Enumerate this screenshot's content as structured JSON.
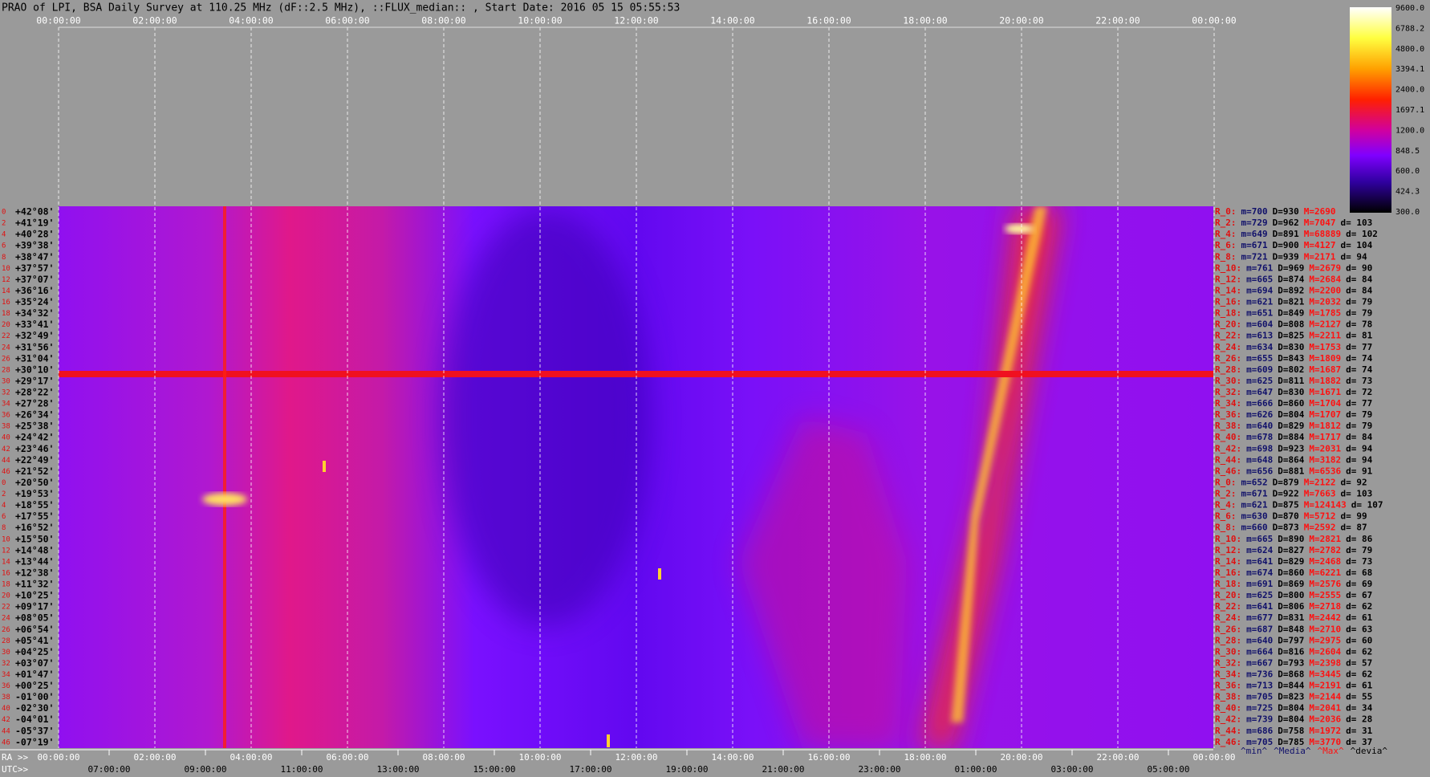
{
  "header": {
    "title": "PRAO of LPI, BSA Daily Survey at 110.25 MHz (dF::2.5 MHz), ::FLUX_median:: , Start Date: 2016 05 15 05:55:53"
  },
  "top_axis": {
    "labels": [
      "00:00:00",
      "02:00:00",
      "04:00:00",
      "06:00:00",
      "08:00:00",
      "10:00:00",
      "12:00:00",
      "14:00:00",
      "16:00:00",
      "18:00:00",
      "20:00:00",
      "22:00:00",
      "00:00:00"
    ]
  },
  "colorbar": {
    "ticks": [
      "9600.0",
      "6788.2",
      "4800.0",
      "3394.1",
      "2400.0",
      "1697.1",
      "1200.0",
      "848.5",
      "600.0",
      "424.3",
      "300.0"
    ]
  },
  "rows": {
    "index": [
      "0",
      "2",
      "4",
      "6",
      "8",
      "10",
      "12",
      "14",
      "16",
      "18",
      "20",
      "22",
      "24",
      "26",
      "28",
      "30",
      "32",
      "34",
      "36",
      "38",
      "40",
      "42",
      "44",
      "46",
      "0",
      "2",
      "4",
      "6",
      "8",
      "10",
      "12",
      "14",
      "16",
      "18",
      "20",
      "22",
      "24",
      "26",
      "28",
      "30",
      "32",
      "34",
      "36",
      "38",
      "40",
      "42",
      "44",
      "46"
    ],
    "declination": [
      "+42°08'",
      "+41°19'",
      "+40°28'",
      "+39°38'",
      "+38°47'",
      "+37°57'",
      "+37°07'",
      "+36°16'",
      "+35°24'",
      "+34°32'",
      "+33°41'",
      "+32°49'",
      "+31°56'",
      "+31°04'",
      "+30°10'",
      "+29°17'",
      "+28°22'",
      "+27°28'",
      "+26°34'",
      "+25°38'",
      "+24°42'",
      "+23°46'",
      "+22°49'",
      "+21°52'",
      "+20°50'",
      "+19°53'",
      "+18°55'",
      "+17°55'",
      "+16°52'",
      "+15°50'",
      "+14°48'",
      "+13°44'",
      "+12°38'",
      "+11°32'",
      "+10°25'",
      "+09°17'",
      "+08°05'",
      "+06°54'",
      "+05°41'",
      "+04°25'",
      "+03°07'",
      "+01°47'",
      "+00°25'",
      "-01°00'",
      "-02°30'",
      "-04°01'",
      "-05°37'",
      "-07°19'"
    ]
  },
  "stats": [
    {
      "label": "R_0:",
      "m": "m=700",
      "D": "D=930",
      "M": "M=2690"
    },
    {
      "label": "R_2:",
      "m": "m=729",
      "D": "D=962",
      "M": "M=7047",
      "d": "d= 103"
    },
    {
      "label": "R_4:",
      "m": "m=649",
      "D": "D=891",
      "M": "M=68889",
      "d": "d= 102"
    },
    {
      "label": "R_6:",
      "m": "m=671",
      "D": "D=900",
      "M": "M=4127",
      "d": "d= 104"
    },
    {
      "label": "R_8:",
      "m": "m=721",
      "D": "D=939",
      "M": "M=2171",
      "d": "d= 94"
    },
    {
      "label": "R_10:",
      "m": "m=761",
      "D": "D=969",
      "M": "M=2679",
      "d": "d= 90"
    },
    {
      "label": "R_12:",
      "m": "m=665",
      "D": "D=874",
      "M": "M=2684",
      "d": "d= 84"
    },
    {
      "label": "R_14:",
      "m": "m=694",
      "D": "D=892",
      "M": "M=2200",
      "d": "d= 84"
    },
    {
      "label": "R_16:",
      "m": "m=621",
      "D": "D=821",
      "M": "M=2032",
      "d": "d= 79"
    },
    {
      "label": "R_18:",
      "m": "m=651",
      "D": "D=849",
      "M": "M=1785",
      "d": "d= 79"
    },
    {
      "label": "R_20:",
      "m": "m=604",
      "D": "D=808",
      "M": "M=2127",
      "d": "d= 78"
    },
    {
      "label": "R_22:",
      "m": "m=613",
      "D": "D=825",
      "M": "M=2211",
      "d": "d= 81"
    },
    {
      "label": "R_24:",
      "m": "m=634",
      "D": "D=830",
      "M": "M=1753",
      "d": "d= 77"
    },
    {
      "label": "R_26:",
      "m": "m=655",
      "D": "D=843",
      "M": "M=1809",
      "d": "d= 74"
    },
    {
      "label": "R_28:",
      "m": "m=609",
      "D": "D=802",
      "M": "M=1687",
      "d": "d= 74"
    },
    {
      "label": "R_30:",
      "m": "m=625",
      "D": "D=811",
      "M": "M=1882",
      "d": "d= 73"
    },
    {
      "label": "R_32:",
      "m": "m=647",
      "D": "D=830",
      "M": "M=1671",
      "d": "d= 72"
    },
    {
      "label": "R_34:",
      "m": "m=666",
      "D": "D=860",
      "M": "M=1704",
      "d": "d= 77"
    },
    {
      "label": "R_36:",
      "m": "m=626",
      "D": "D=804",
      "M": "M=1707",
      "d": "d= 79"
    },
    {
      "label": "R_38:",
      "m": "m=640",
      "D": "D=829",
      "M": "M=1812",
      "d": "d= 79"
    },
    {
      "label": "R_40:",
      "m": "m=678",
      "D": "D=884",
      "M": "M=1717",
      "d": "d= 84"
    },
    {
      "label": "R_42:",
      "m": "m=698",
      "D": "D=923",
      "M": "M=2031",
      "d": "d= 94"
    },
    {
      "label": "R_44:",
      "m": "m=648",
      "D": "D=864",
      "M": "M=3182",
      "d": "d= 94"
    },
    {
      "label": "R_46:",
      "m": "m=656",
      "D": "D=881",
      "M": "M=6536",
      "d": "d= 91"
    },
    {
      "label": "R_0:",
      "m": "m=652",
      "D": "D=879",
      "M": "M=2122",
      "d": "d= 92"
    },
    {
      "label": "R_2:",
      "m": "m=671",
      "D": "D=922",
      "M": "M=7663",
      "d": "d= 103"
    },
    {
      "label": "R_4:",
      "m": "m=621",
      "D": "D=875",
      "M": "M=124143",
      "d": "d= 107"
    },
    {
      "label": "R_6:",
      "m": "m=630",
      "D": "D=870",
      "M": "M=5712",
      "d": "d= 99"
    },
    {
      "label": "R_8:",
      "m": "m=660",
      "D": "D=873",
      "M": "M=2592",
      "d": "d= 87"
    },
    {
      "label": "R_10:",
      "m": "m=665",
      "D": "D=890",
      "M": "M=2821",
      "d": "d= 86"
    },
    {
      "label": "R_12:",
      "m": "m=624",
      "D": "D=827",
      "M": "M=2782",
      "d": "d= 79"
    },
    {
      "label": "R_14:",
      "m": "m=641",
      "D": "D=829",
      "M": "M=2468",
      "d": "d= 73"
    },
    {
      "label": "R_16:",
      "m": "m=674",
      "D": "D=860",
      "M": "M=6221",
      "d": "d= 68"
    },
    {
      "label": "R_18:",
      "m": "m=691",
      "D": "D=869",
      "M": "M=2576",
      "d": "d= 69"
    },
    {
      "label": "R_20:",
      "m": "m=625",
      "D": "D=800",
      "M": "M=2555",
      "d": "d= 67"
    },
    {
      "label": "R_22:",
      "m": "m=641",
      "D": "D=806",
      "M": "M=2718",
      "d": "d= 62"
    },
    {
      "label": "R_24:",
      "m": "m=677",
      "D": "D=831",
      "M": "M=2442",
      "d": "d= 61"
    },
    {
      "label": "R_26:",
      "m": "m=687",
      "D": "D=848",
      "M": "M=2710",
      "d": "d= 63"
    },
    {
      "label": "R_28:",
      "m": "m=640",
      "D": "D=797",
      "M": "M=2975",
      "d": "d= 60"
    },
    {
      "label": "R_30:",
      "m": "m=664",
      "D": "D=816",
      "M": "M=2604",
      "d": "d= 62"
    },
    {
      "label": "R_32:",
      "m": "m=667",
      "D": "D=793",
      "M": "M=2398",
      "d": "d= 57"
    },
    {
      "label": "R_34:",
      "m": "m=736",
      "D": "D=868",
      "M": "M=3445",
      "d": "d= 62"
    },
    {
      "label": "R_36:",
      "m": "m=713",
      "D": "D=844",
      "M": "M=2191",
      "d": "d= 61"
    },
    {
      "label": "R_38:",
      "m": "m=705",
      "D": "D=823",
      "M": "M=2144",
      "d": "d= 55"
    },
    {
      "label": "R_40:",
      "m": "m=725",
      "D": "D=804",
      "M": "M=2041",
      "d": "d= 34"
    },
    {
      "label": "R_42:",
      "m": "m=739",
      "D": "D=804",
      "M": "M=2036",
      "d": "d= 28"
    },
    {
      "label": "R_44:",
      "m": "m=686",
      "D": "D=758",
      "M": "M=1972",
      "d": "d= 31"
    },
    {
      "label": "R_46:",
      "m": "m=705",
      "D": "D=785",
      "M": "M=3770",
      "d": "d= 37"
    }
  ],
  "stats_footer": {
    "min": "^min^",
    "median": "^Media^",
    "max": "^Max^",
    "deviation": "^devia^"
  },
  "bottom_axis": {
    "ra_prefix": "RA >>",
    "ra_labels": [
      "00:00:00",
      "02:00:00",
      "04:00:00",
      "06:00:00",
      "08:00:00",
      "10:00:00",
      "12:00:00",
      "14:00:00",
      "16:00:00",
      "18:00:00",
      "20:00:00",
      "22:00:00",
      "00:00:00"
    ],
    "utc_prefix": "UTC>>",
    "utc_labels": [
      "07:00:00",
      "09:00:00",
      "11:00:00",
      "13:00:00",
      "15:00:00",
      "17:00:00",
      "19:00:00",
      "21:00:00",
      "23:00:00",
      "01:00:00",
      "03:00:00",
      "05:00:00"
    ]
  }
}
